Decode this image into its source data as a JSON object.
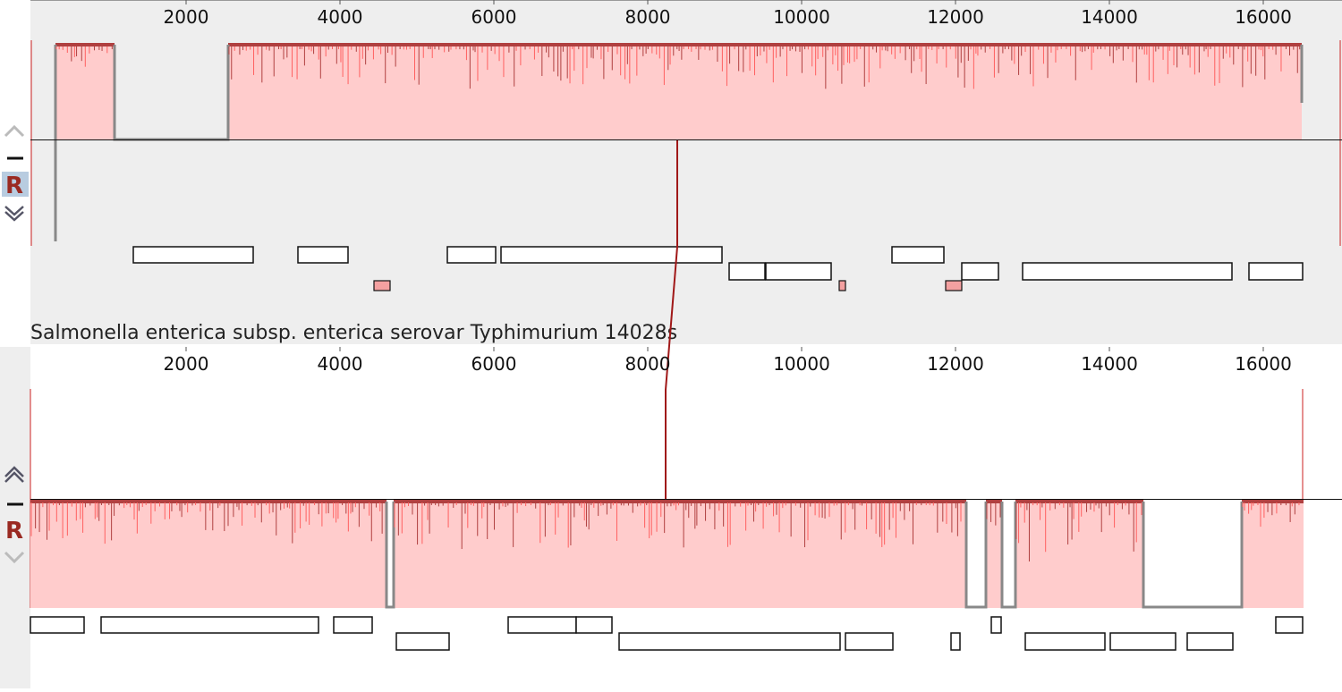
{
  "panels": [
    {
      "button": "R",
      "ticks": [
        2000,
        4000,
        6000,
        8000,
        10000,
        12000,
        14000,
        16000
      ]
    },
    {
      "label": "Salmonella enterica subsp. enterica serovar Typhimurium 14028s",
      "button": "R",
      "ticks": [
        2000,
        4000,
        6000,
        8000,
        10000,
        12000,
        14000,
        16000
      ]
    }
  ]
}
